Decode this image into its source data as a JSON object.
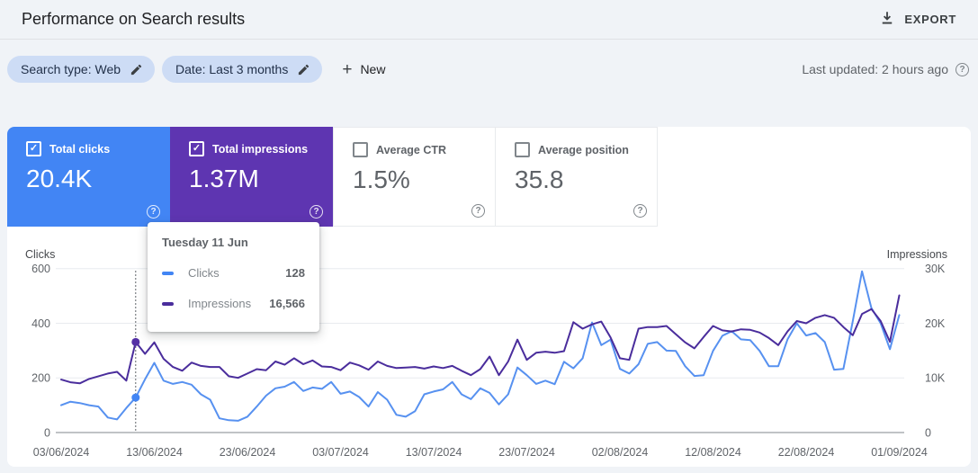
{
  "header": {
    "title": "Performance on Search results",
    "export_label": "EXPORT"
  },
  "filters": {
    "chips": [
      {
        "label": "Search type: Web"
      },
      {
        "label": "Date: Last 3 months"
      }
    ],
    "new_label": "New",
    "last_updated": "Last updated: 2 hours ago"
  },
  "metric_cards": [
    {
      "label": "Total clicks",
      "value": "20.4K",
      "checked": true,
      "color": "#4285f4"
    },
    {
      "label": "Total impressions",
      "value": "1.37M",
      "checked": true,
      "color": "#5e35b1"
    },
    {
      "label": "Average CTR",
      "value": "1.5%",
      "checked": false,
      "color": null
    },
    {
      "label": "Average position",
      "value": "35.8",
      "checked": false,
      "color": null
    }
  ],
  "tooltip": {
    "title": "Tuesday 11 Jun",
    "rows": [
      {
        "label": "Clicks",
        "value": "128",
        "color": "#4285f4"
      },
      {
        "label": "Impressions",
        "value": "16,566",
        "color": "#4a2d9c"
      }
    ]
  },
  "chart_data": {
    "type": "line",
    "title": "Performance on Search results",
    "grid": true,
    "dates": [
      "03/06",
      "04/06",
      "05/06",
      "06/06",
      "07/06",
      "08/06",
      "09/06",
      "10/06",
      "11/06",
      "12/06",
      "13/06",
      "14/06",
      "15/06",
      "16/06",
      "17/06",
      "18/06",
      "19/06",
      "20/06",
      "21/06",
      "22/06",
      "23/06",
      "24/06",
      "25/06",
      "26/06",
      "27/06",
      "28/06",
      "29/06",
      "30/06",
      "01/07",
      "02/07",
      "03/07",
      "04/07",
      "05/07",
      "06/07",
      "07/07",
      "08/07",
      "09/07",
      "10/07",
      "11/07",
      "12/07",
      "13/07",
      "14/07",
      "15/07",
      "16/07",
      "17/07",
      "18/07",
      "19/07",
      "20/07",
      "21/07",
      "22/07",
      "23/07",
      "24/07",
      "25/07",
      "26/07",
      "27/07",
      "28/07",
      "29/07",
      "30/07",
      "31/07",
      "01/08",
      "02/08",
      "03/08",
      "04/08",
      "05/08",
      "06/08",
      "07/08",
      "08/08",
      "09/08",
      "10/08",
      "11/08",
      "12/08",
      "13/08",
      "14/08",
      "15/08",
      "16/08",
      "17/08",
      "18/08",
      "19/08",
      "20/08",
      "21/08",
      "22/08",
      "23/08",
      "24/08",
      "25/08",
      "26/08",
      "27/08",
      "28/08",
      "29/08",
      "30/08",
      "31/08",
      "01/09"
    ],
    "series": [
      {
        "name": "Clicks",
        "axis": "left",
        "color": "#5791f0",
        "values": [
          100,
          113,
          108,
          100,
          95,
          55,
          48,
          90,
          128,
          195,
          255,
          190,
          178,
          185,
          175,
          140,
          120,
          52,
          45,
          43,
          58,
          95,
          135,
          162,
          168,
          185,
          152,
          165,
          160,
          185,
          142,
          150,
          130,
          95,
          148,
          120,
          65,
          58,
          78,
          140,
          150,
          158,
          185,
          140,
          122,
          162,
          145,
          103,
          140,
          238,
          210,
          178,
          190,
          177,
          259,
          235,
          272,
          403,
          320,
          340,
          233,
          216,
          250,
          325,
          331,
          300,
          299,
          243,
          207,
          210,
          299,
          354,
          371,
          341,
          338,
          299,
          243,
          243,
          341,
          400,
          355,
          364,
          331,
          230,
          233,
          407,
          590,
          456,
          400,
          305,
          430
        ]
      },
      {
        "name": "Impressions",
        "axis": "right",
        "color": "#4a2d9c",
        "values": [
          9700,
          9200,
          9000,
          9800,
          10300,
          10800,
          11100,
          9500,
          16566,
          14400,
          16500,
          13500,
          12000,
          11300,
          12800,
          12200,
          12000,
          12000,
          10300,
          10000,
          10800,
          11600,
          11400,
          13000,
          12400,
          13600,
          12500,
          13200,
          12100,
          12000,
          11400,
          12800,
          12300,
          11500,
          13000,
          12200,
          11800,
          11900,
          12000,
          11700,
          12100,
          11800,
          12200,
          11300,
          10500,
          11600,
          13900,
          10500,
          13000,
          17000,
          13300,
          14600,
          14800,
          14600,
          14900,
          20200,
          19000,
          19800,
          20300,
          17400,
          13600,
          13300,
          19000,
          19300,
          19300,
          19500,
          18000,
          16500,
          15400,
          17500,
          19500,
          18700,
          18500,
          18900,
          18800,
          18300,
          17300,
          16000,
          18500,
          20400,
          20000,
          21000,
          21500,
          21000,
          19300,
          17800,
          21700,
          22600,
          20400,
          16600,
          25100
        ]
      }
    ],
    "left_axis": {
      "title": "Clicks",
      "range": [
        0,
        600
      ],
      "tick_values": [
        0,
        200,
        400,
        600
      ],
      "tick_labels": [
        "0",
        "200",
        "400",
        "600"
      ]
    },
    "right_axis": {
      "title": "Impressions",
      "range": [
        0,
        30000
      ],
      "tick_values": [
        0,
        10000,
        20000,
        30000
      ],
      "tick_labels": [
        "0",
        "10K",
        "20K",
        "30K"
      ]
    },
    "x_tick_indices": [
      0,
      10,
      20,
      30,
      40,
      50,
      60,
      70,
      80,
      90
    ],
    "x_tick_labels": [
      "03/06/2024",
      "13/06/2024",
      "23/06/2024",
      "03/07/2024",
      "13/07/2024",
      "23/07/2024",
      "02/08/2024",
      "12/08/2024",
      "22/08/2024",
      "01/09/2024"
    ],
    "hover": {
      "index": 8,
      "label": "Tuesday 11 Jun",
      "clicks": 128,
      "impressions": 16566
    }
  }
}
